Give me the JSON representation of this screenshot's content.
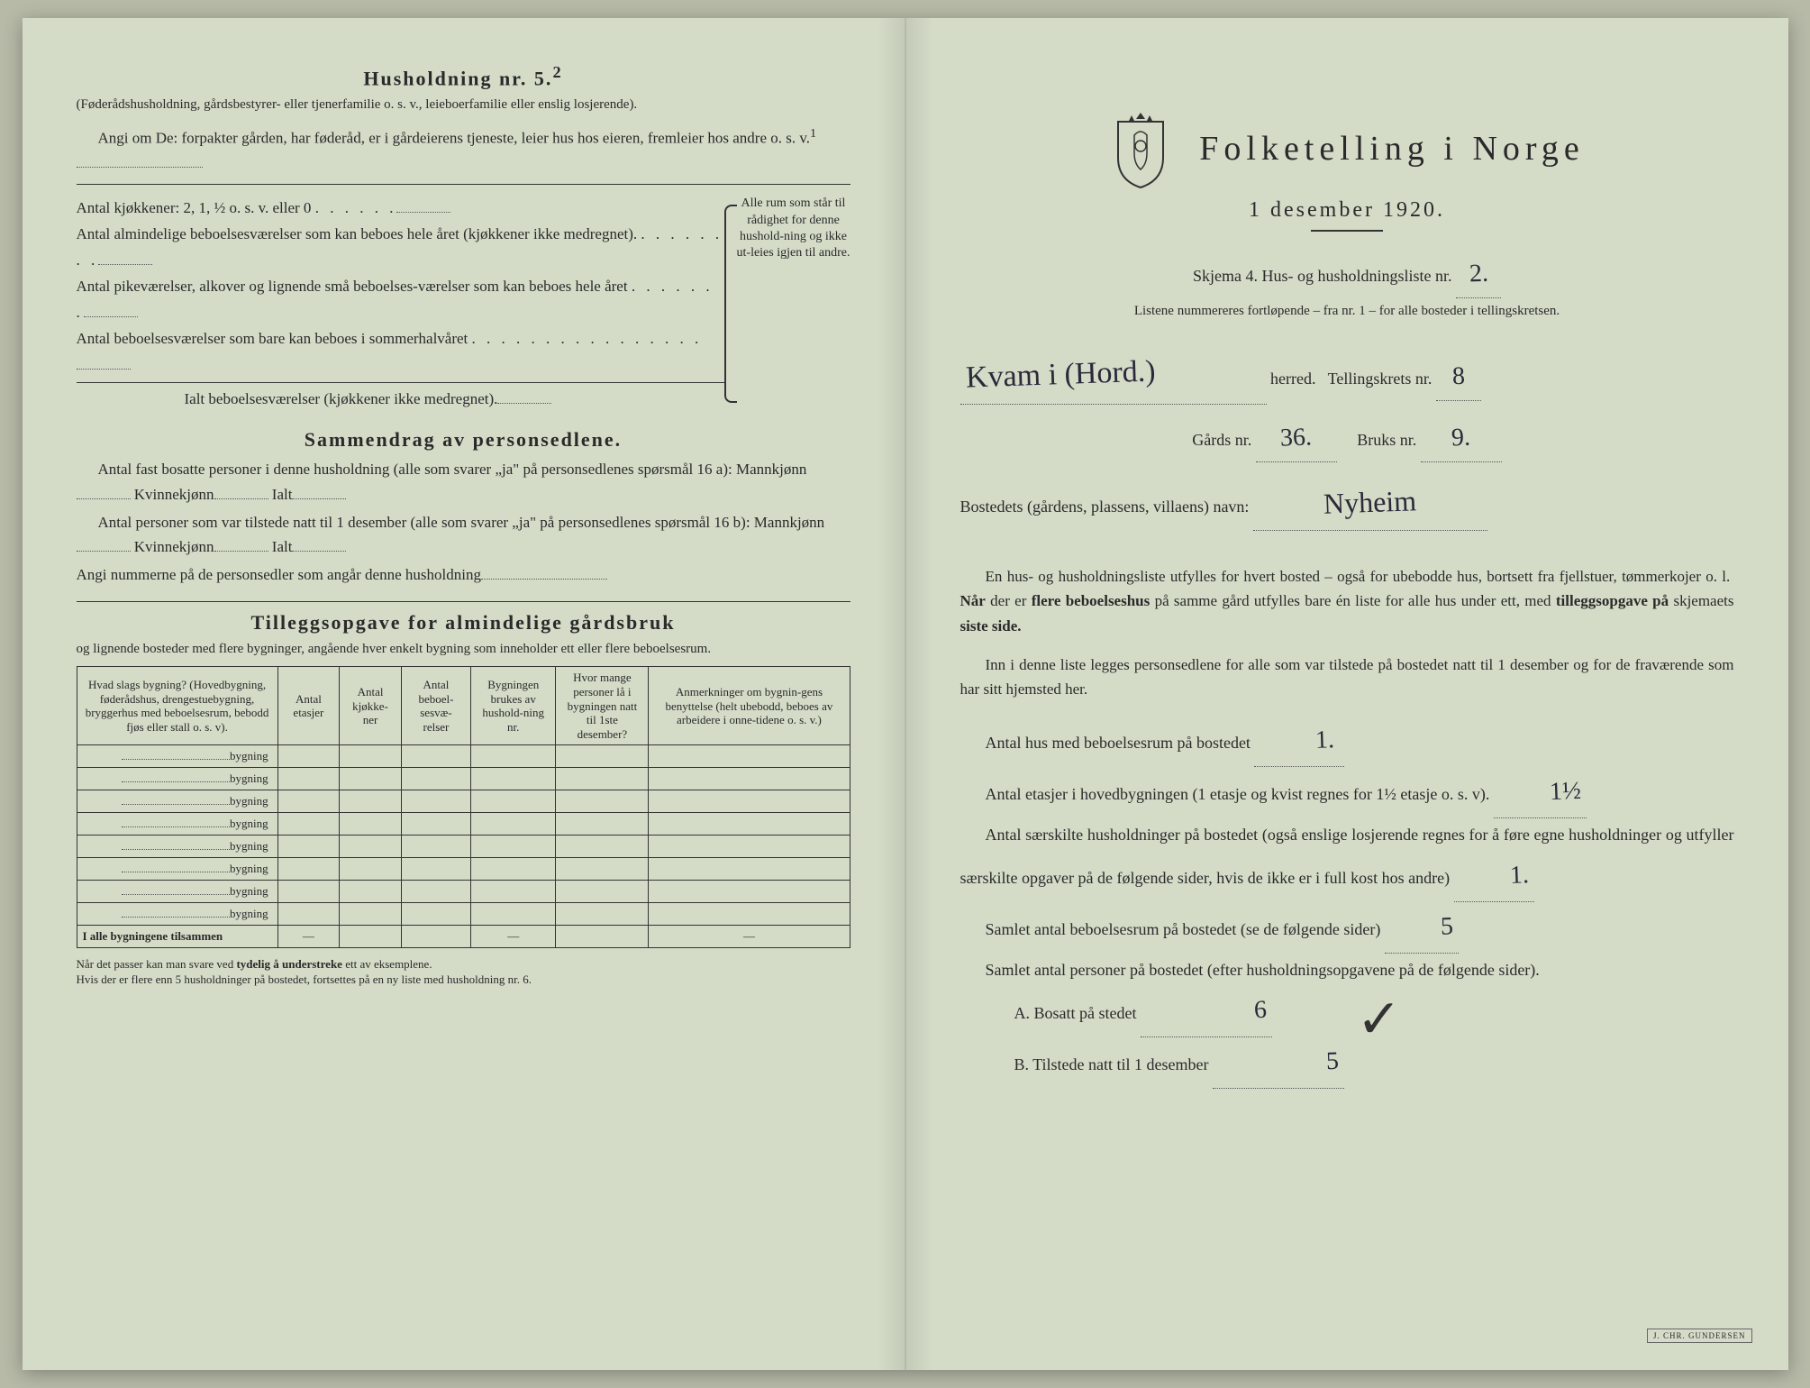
{
  "left": {
    "husholdning_title": "Husholdning nr. 5.",
    "husholdning_sup": "2",
    "husholdning_sub": "(Føderådshusholdning, gårdsbestyrer- eller tjenerfamilie o. s. v., leieboerfamilie eller enslig losjerende).",
    "angi_om": "Angi om De:   forpakter gården, har føderåd, er i gårdeierens tjeneste, leier hus hos eieren, fremleier hos andre o. s. v.",
    "angi_sup": "1",
    "kitchen_line": "Antal kjøkkener: 2, 1, ½ o. s. v. eller 0",
    "rooms_line1": "Antal almindelige beboelsesværelser som kan beboes hele året (kjøkkener ikke medregnet).",
    "rooms_line2": "Antal pikeværelser, alkover og lignende små beboelses-værelser som kan beboes hele året",
    "rooms_line3": "Antal beboelsesværelser som bare kan beboes i sommerhalvåret",
    "rooms_total": "Ialt beboelsesværelser  (kjøkkener ikke medregnet).",
    "brace_text": "Alle rum som står til rådighet for denne hushold-ning og ikke ut-leies igjen til andre.",
    "sammendrag_title": "Sammendrag av personsedlene.",
    "sammendrag_p1": "Antal fast bosatte personer i denne husholdning (alle som svarer „ja\" på personsedlenes spørsmål 16 a): Mannkjønn",
    "kvinne_label": "Kvinnekjønn",
    "ialt_label": "Ialt",
    "sammendrag_p2": "Antal personer som var tilstede natt til 1 desember (alle som svarer „ja\" på personsedlenes spørsmål 16 b): Mannkjønn",
    "sammendrag_p3": "Angi nummerne på de personsedler som angår denne husholdning",
    "tillegg_title": "Tilleggsopgave for almindelige gårdsbruk",
    "tillegg_sub": "og lignende bosteder med flere bygninger, angående hver enkelt bygning som inneholder ett eller flere beboelsesrum.",
    "table": {
      "headers": [
        "Hvad slags bygning?\n(Hovedbygning, føderådshus, drengestuebygning, bryggerhus med beboelsesrum, bebodd fjøs eller stall o. s. v).",
        "Antal etasjer",
        "Antal kjøkke-ner",
        "Antal beboel-sesvæ-relser",
        "Bygningen brukes av hushold-ning nr.",
        "Hvor mange personer lå i bygningen natt til 1ste desember?",
        "Anmerkninger om bygnin-gens benyttelse (helt ubebodd, beboes av arbeidere i onne-tidene o. s. v.)"
      ],
      "row_label": "bygning",
      "row_count": 8,
      "total_label": "I alle bygningene tilsammen"
    },
    "footnote": "Når det passer kan man svare ved tydelig å understreke ett av eksemplene.\nHvis der er flere enn 5 husholdninger på bostedet, fortsettes på en ny liste med husholdning nr. 6."
  },
  "right": {
    "main_title": "Folketelling i Norge",
    "date": "1 desember 1920.",
    "skjema_line": "Skjema 4.  Hus- og husholdningsliste nr.",
    "liste_nr": "2.",
    "listene_line": "Listene nummereres fortløpende – fra nr. 1 – for alle bosteder i tellingskretsen.",
    "herred_handwritten": "Kvam i (Hord.)",
    "herred_label": "herred.",
    "tellingskrets_label": "Tellingskrets nr.",
    "tellingskrets_nr": "8",
    "gards_label": "Gårds nr.",
    "gards_nr": "36.",
    "bruks_label": "Bruks nr.",
    "bruks_nr": "9.",
    "bosted_label": "Bostedets (gårdens, plassens, villaens) navn:",
    "bosted_navn": "Nyheim",
    "para1": "En hus- og husholdningsliste utfylles for hvert bosted – også for ubebodde hus, bortsett fra fjellstuer, tømmerkojer o. l.  Når der er flere beboelseshus på samme gård utfylles bare én liste for alle hus under ett, med tilleggsopgave på skjemaets siste side.",
    "para2": "Inn i denne liste legges personsedlene for alle som var tilstede på bostedet natt til 1 desember og for de fraværende som har sitt hjemsted her.",
    "field1_label": "Antal hus med beboelsesrum på bostedet",
    "field1_val": "1.",
    "field2_label_a": "Antal etasjer i hovedbygningen (1 etasje og kvist regnes for 1½ etasje o. s. v).",
    "field2_val": "1½",
    "field3_label": "Antal særskilte husholdninger på bostedet (også enslige losjerende regnes for å føre egne husholdninger og utfyller særskilte opgaver på de følgende sider, hvis de ikke er i full kost hos andre)",
    "field3_val": "1.",
    "field4_label": "Samlet antal beboelsesrum på bostedet (se de følgende sider)",
    "field4_val": "5",
    "field5_label": "Samlet antal personer på bostedet (efter husholdningsopgavene på de følgende sider).",
    "field6a_label": "A.  Bosatt på stedet",
    "field6a_val": "6",
    "field6b_label": "B.  Tilstede natt til 1 desember",
    "field6b_val": "5",
    "printer": "J. CHR. GUNDERSEN"
  },
  "colors": {
    "paper": "#d4dcc8",
    "ink": "#2a2a2a",
    "handwriting": "#2a2a3a"
  }
}
